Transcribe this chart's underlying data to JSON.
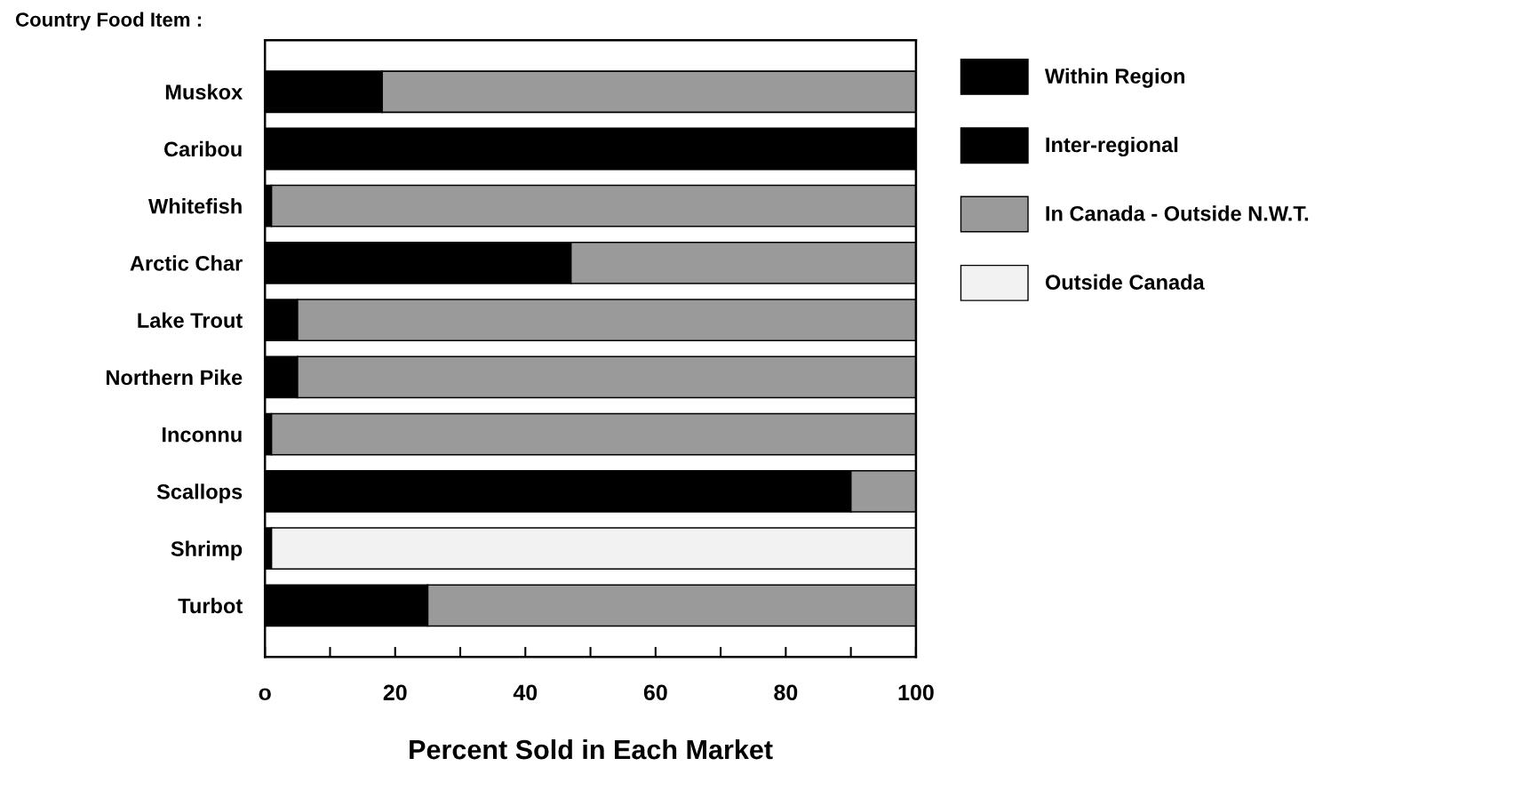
{
  "chart_data": {
    "type": "bar",
    "orientation": "horizontal",
    "stacked": true,
    "title": "Country Food Item :",
    "xlabel": "Percent Sold in Each Market",
    "categories": [
      "Muskox",
      "Caribou",
      "Whitefish",
      "Arctic Char",
      "Lake Trout",
      "Northern Pike",
      "Inconnu",
      "Scallops",
      "Shrimp",
      "Turbot"
    ],
    "series": [
      {
        "name": "Within Region",
        "color": "#000000",
        "values": [
          18,
          100,
          1,
          47,
          5,
          5,
          1,
          90,
          1,
          25
        ]
      },
      {
        "name": "Inter-regional",
        "color": "#000000",
        "values": [
          0,
          0,
          0,
          0,
          0,
          0,
          0,
          0,
          0,
          0
        ]
      },
      {
        "name": "In Canada - Outside N.W.T.",
        "color": "#9a9a9a",
        "values": [
          82,
          0,
          99,
          53,
          95,
          95,
          99,
          10,
          0,
          75
        ]
      },
      {
        "name": "Outside Canada",
        "color": "#f2f2f2",
        "values": [
          0,
          0,
          0,
          0,
          0,
          0,
          0,
          0,
          99,
          0
        ]
      }
    ],
    "xlim": [
      0,
      100
    ],
    "xticks": [
      {
        "value": 0,
        "label": "o"
      },
      {
        "value": 10,
        "label": null
      },
      20,
      {
        "value": 30,
        "label": null
      },
      40,
      {
        "value": 50,
        "label": null
      },
      60,
      {
        "value": 70,
        "label": null
      },
      80,
      {
        "value": 90,
        "label": null
      },
      100
    ],
    "legend": "right"
  }
}
